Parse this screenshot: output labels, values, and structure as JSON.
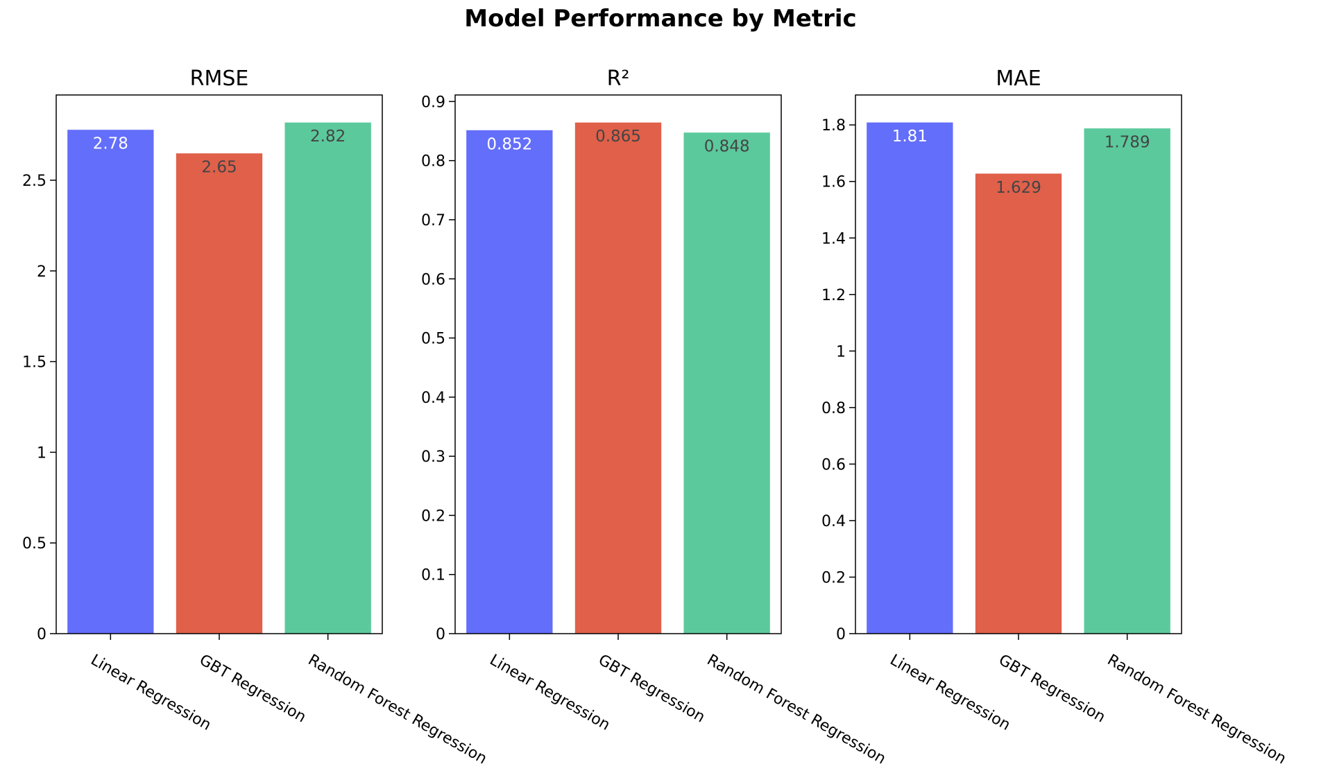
{
  "chart_data": {
    "title": "Model Performance by Metric",
    "type": "bar",
    "categories": [
      "Linear Regression",
      "GBT Regression",
      "Random Forest Regression"
    ],
    "colors": [
      "#636efa",
      "#e0604a",
      "#5bc99c"
    ],
    "label_colors": [
      "#ffffff",
      "#444444",
      "#444444"
    ],
    "panels": [
      {
        "title": "RMSE",
        "values": [
          2.78,
          2.65,
          2.82
        ],
        "labels": [
          "2.78",
          "2.65",
          "2.82"
        ],
        "ylim": [
          0,
          2.97
        ],
        "ticks": [
          0,
          0.5,
          1,
          1.5,
          2,
          2.5
        ],
        "tick_labels": [
          "0",
          "0.5",
          "1",
          "1.5",
          "2",
          "2.5"
        ]
      },
      {
        "title": "R²",
        "values": [
          0.852,
          0.865,
          0.848
        ],
        "labels": [
          "0.852",
          "0.865",
          "0.848"
        ],
        "ylim": [
          0,
          0.911
        ],
        "ticks": [
          0,
          0.1,
          0.2,
          0.3,
          0.4,
          0.5,
          0.6,
          0.7,
          0.8,
          0.9
        ],
        "tick_labels": [
          "0",
          "0.1",
          "0.2",
          "0.3",
          "0.4",
          "0.5",
          "0.6",
          "0.7",
          "0.8",
          "0.9"
        ]
      },
      {
        "title": "MAE",
        "values": [
          1.81,
          1.629,
          1.789
        ],
        "labels": [
          "1.81",
          "1.629",
          "1.789"
        ],
        "ylim": [
          0,
          1.906
        ],
        "ticks": [
          0,
          0.2,
          0.4,
          0.6,
          0.8,
          1,
          1.2,
          1.4,
          1.6,
          1.8
        ],
        "tick_labels": [
          "0",
          "0.2",
          "0.4",
          "0.6",
          "0.8",
          "1",
          "1.2",
          "1.4",
          "1.6",
          "1.8"
        ]
      }
    ],
    "grid": false,
    "legend": "none"
  }
}
